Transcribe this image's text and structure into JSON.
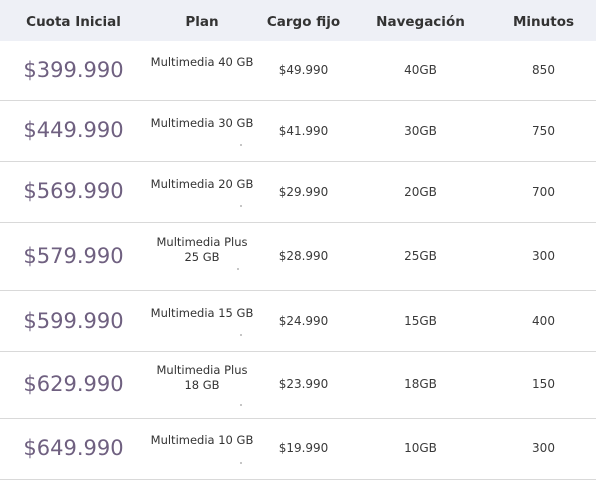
{
  "table": {
    "headers": {
      "cuota": "Cuota Inicial",
      "plan": "Plan",
      "cargo": "Cargo fijo",
      "navegacion": "Navegación",
      "minutos": "Minutos"
    },
    "rows": [
      {
        "cuota": "$399.990",
        "plan": "Multimedia 40 GB",
        "cargo": "$49.990",
        "navegacion": "40GB",
        "minutos": "850"
      },
      {
        "cuota": "$449.990",
        "plan": "Multimedia 30 GB",
        "cargo": "$41.990",
        "navegacion": "30GB",
        "minutos": "750"
      },
      {
        "cuota": "$569.990",
        "plan": "Multimedia 20 GB",
        "cargo": "$29.990",
        "navegacion": "20GB",
        "minutos": "700"
      },
      {
        "cuota": "$579.990",
        "plan": "Multimedia Plus 25 GB",
        "cargo": "$28.990",
        "navegacion": "25GB",
        "minutos": "300"
      },
      {
        "cuota": "$599.990",
        "plan": "Multimedia 15 GB",
        "cargo": "$24.990",
        "navegacion": "15GB",
        "minutos": "400"
      },
      {
        "cuota": "$629.990",
        "plan": "Multimedia Plus 18 GB",
        "cargo": "$23.990",
        "navegacion": "18GB",
        "minutos": "150"
      },
      {
        "cuota": "$649.990",
        "plan": "Multimedia 10 GB",
        "cargo": "$19.990",
        "navegacion": "10GB",
        "minutos": "300"
      }
    ]
  }
}
